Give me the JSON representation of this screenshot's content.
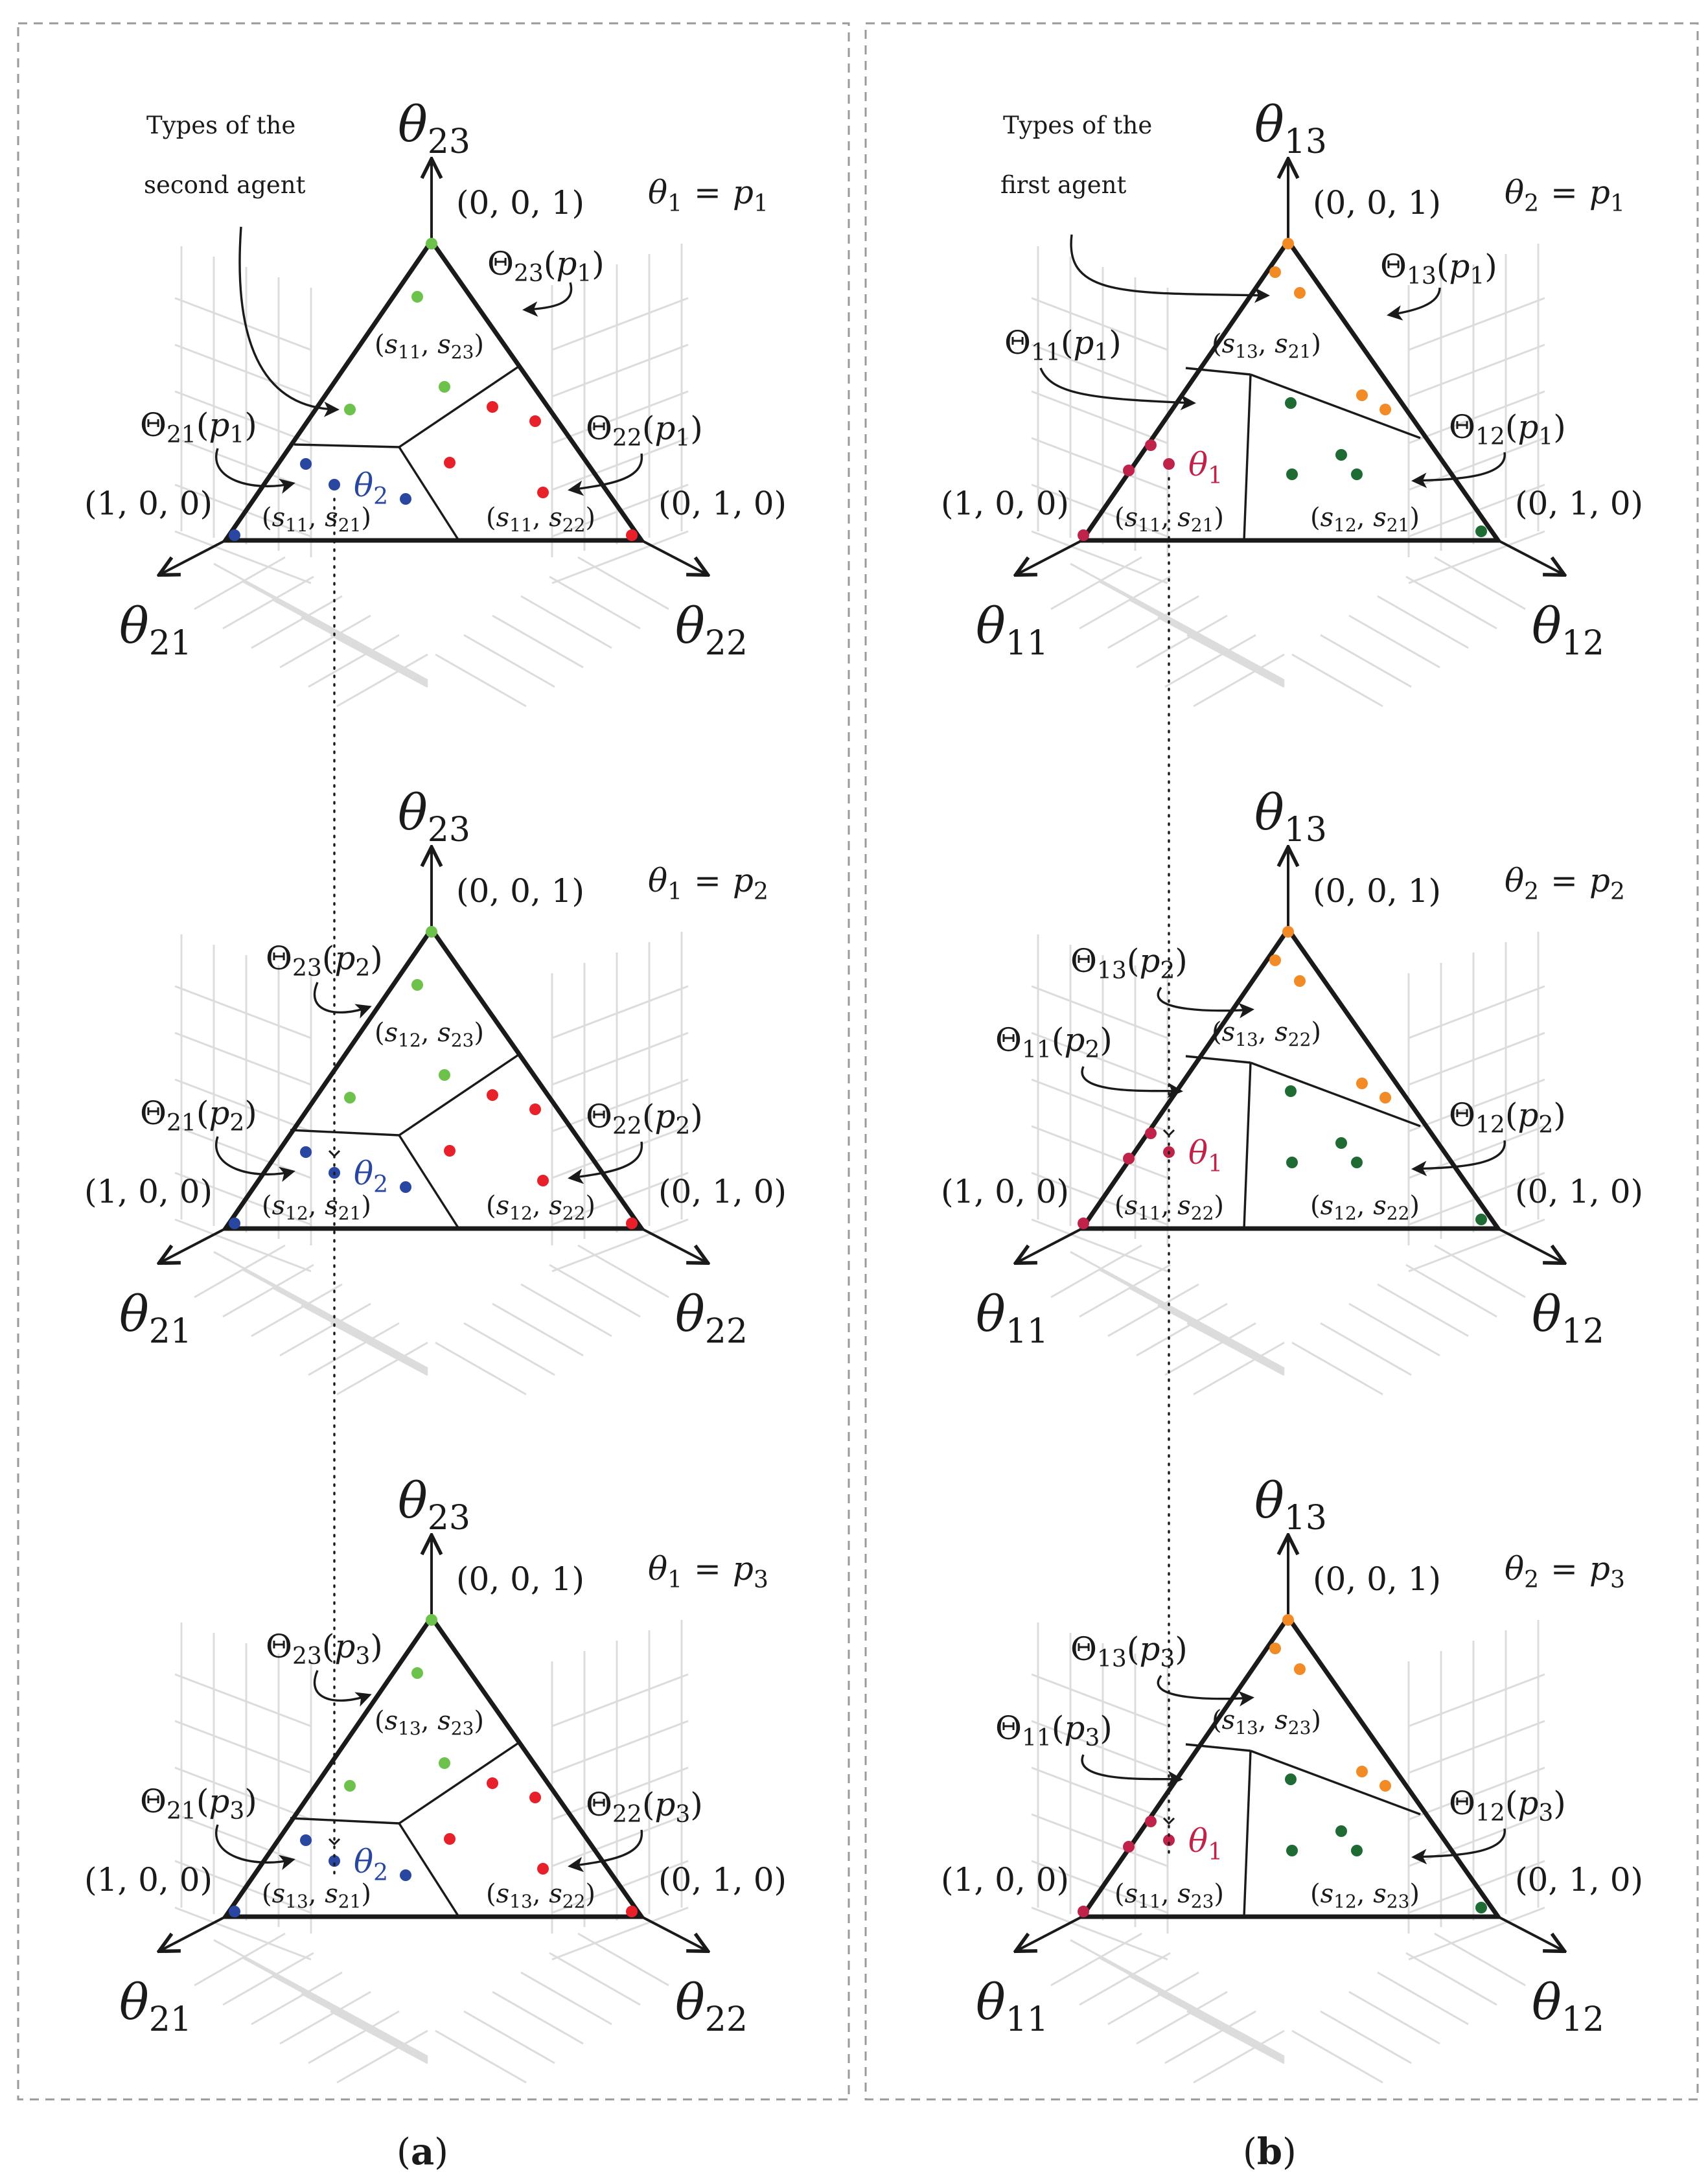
{
  "panels": [
    {
      "id": "a",
      "label": "(a)",
      "label_letter": "a",
      "note": [
        "Types of the",
        "second agent"
      ],
      "axes": {
        "top": {
          "base": "θ",
          "sub": "23"
        },
        "left": {
          "base": "θ",
          "sub": "21"
        },
        "right": {
          "base": "θ",
          "sub": "22"
        }
      },
      "fixed_var": "θ",
      "fixed_sub": "1",
      "type_label": "θ",
      "type_label_sub": "2",
      "type_color": "#2946a0",
      "theta_left": "Θ",
      "theta_left_sub": "21",
      "theta_top": "Θ",
      "theta_top_sub": "23",
      "theta_right": "Θ",
      "theta_right_sub": "22",
      "rows": [
        {
          "fixed_val": "p",
          "fixed_val_sub": "1",
          "theta_arg": "p",
          "theta_arg_sub": "1",
          "region_top": {
            "a": "11",
            "b": "23"
          },
          "region_left": {
            "a": "11",
            "b": "21"
          },
          "region_right": {
            "a": "11",
            "b": "22"
          }
        },
        {
          "fixed_val": "p",
          "fixed_val_sub": "2",
          "theta_arg": "p",
          "theta_arg_sub": "2",
          "region_top": {
            "a": "12",
            "b": "23"
          },
          "region_left": {
            "a": "12",
            "b": "21"
          },
          "region_right": {
            "a": "12",
            "b": "22"
          }
        },
        {
          "fixed_val": "p",
          "fixed_val_sub": "3",
          "theta_arg": "p",
          "theta_arg_sub": "3",
          "region_top": {
            "a": "13",
            "b": "23"
          },
          "region_left": {
            "a": "13",
            "b": "21"
          },
          "region_right": {
            "a": "13",
            "b": "22"
          }
        }
      ]
    },
    {
      "id": "b",
      "label": "(b)",
      "label_letter": "b",
      "note": [
        "Types of the",
        "first agent"
      ],
      "axes": {
        "top": {
          "base": "θ",
          "sub": "13"
        },
        "left": {
          "base": "θ",
          "sub": "11"
        },
        "right": {
          "base": "θ",
          "sub": "12"
        }
      },
      "fixed_var": "θ",
      "fixed_sub": "2",
      "type_label": "θ",
      "type_label_sub": "1",
      "type_color": "#c0234a",
      "theta_left": "Θ",
      "theta_left_sub": "11",
      "theta_top": "Θ",
      "theta_top_sub": "13",
      "theta_right": "Θ",
      "theta_right_sub": "12",
      "rows": [
        {
          "fixed_val": "p",
          "fixed_val_sub": "1",
          "theta_arg": "p",
          "theta_arg_sub": "1",
          "region_top": {
            "a": "13",
            "b": "21"
          },
          "region_left": {
            "a": "11",
            "b": "21"
          },
          "region_right": {
            "a": "12",
            "b": "21"
          }
        },
        {
          "fixed_val": "p",
          "fixed_val_sub": "2",
          "theta_arg": "p",
          "theta_arg_sub": "2",
          "region_top": {
            "a": "13",
            "b": "22"
          },
          "region_left": {
            "a": "11",
            "b": "22"
          },
          "region_right": {
            "a": "12",
            "b": "22"
          }
        },
        {
          "fixed_val": "p",
          "fixed_val_sub": "3",
          "theta_arg": "p",
          "theta_arg_sub": "3",
          "region_top": {
            "a": "13",
            "b": "23"
          },
          "region_left": {
            "a": "11",
            "b": "23"
          },
          "region_right": {
            "a": "12",
            "b": "23"
          }
        }
      ]
    }
  ],
  "vertex_labels": {
    "top": "(0, 0, 1)",
    "left": "(1, 0, 0)",
    "right": "(0, 1, 0)"
  },
  "colors": {
    "panel_a": {
      "top": "#6cc24a",
      "left": "#2946a0",
      "right": "#e8202a"
    },
    "panel_b": {
      "top": "#f28a26",
      "left": "#c0234a",
      "right": "#1e6b34"
    }
  }
}
